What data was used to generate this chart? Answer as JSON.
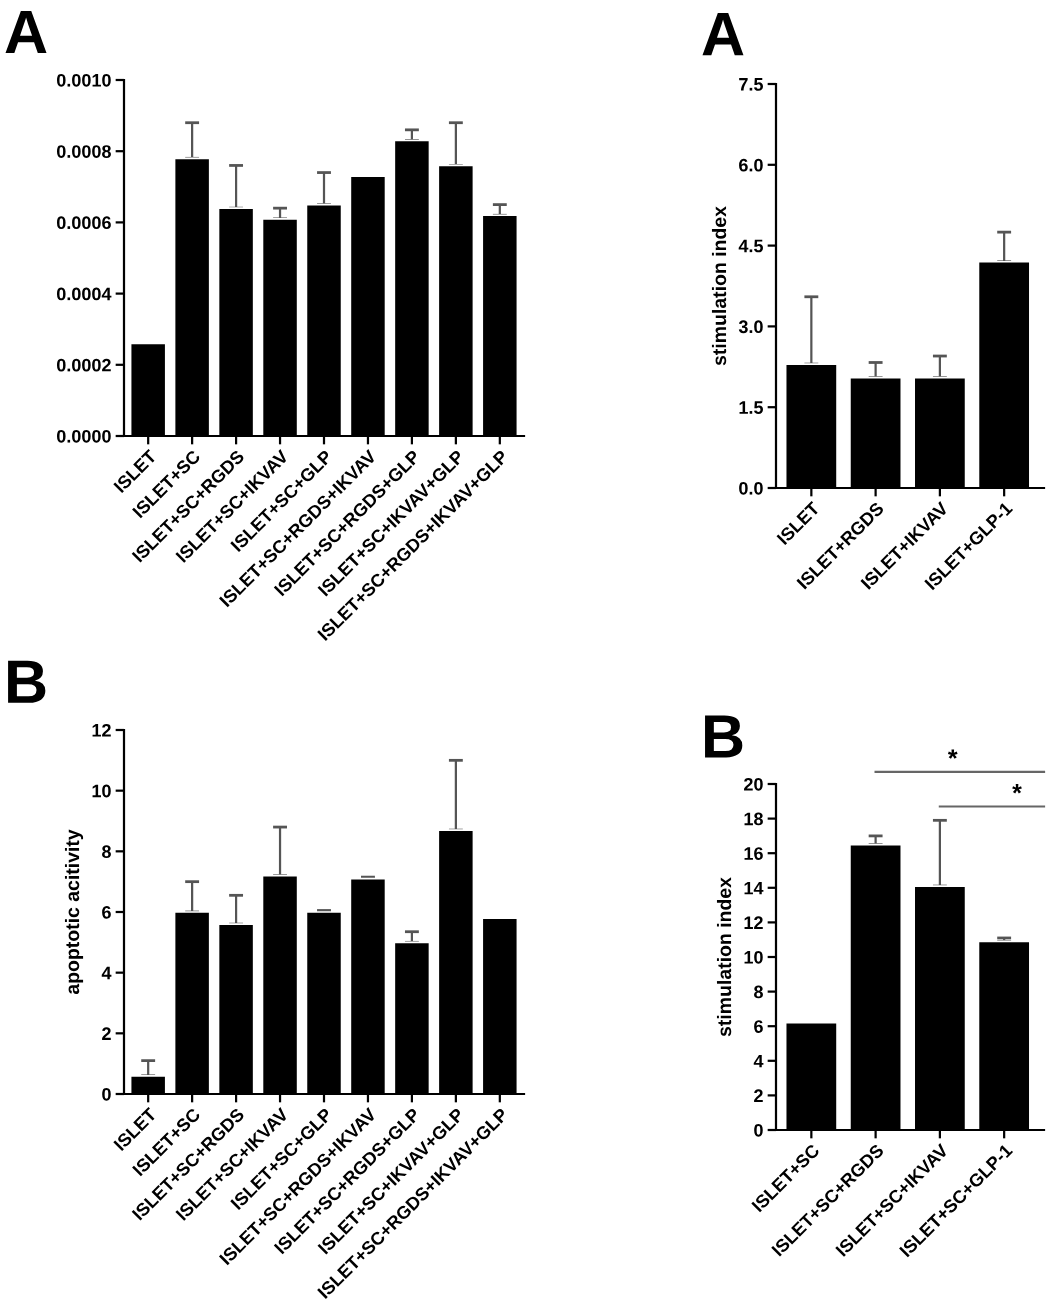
{
  "chart_data": [
    {
      "type": "bar",
      "title": "A",
      "categories": [
        "ISLET",
        "ISLET+SC",
        "ISLET+SC+RGDS",
        "ISLET+SC+IKVAV",
        "ISLET+SC+GLP",
        "ISLET+SC+RGDS+IKVAV",
        "ISLET+SC+RGDS+GLP",
        "ISLET+SC+IKVAV+GLP",
        "ISLET+SC+RGDS+IKVAV+GLP"
      ],
      "values": [
        0.00026,
        0.00078,
        0.00064,
        0.00061,
        0.00065,
        0.00073,
        0.00083,
        0.00076,
        0.00062
      ],
      "errors": [
        null,
        [
          0.00078,
          0.00088
        ],
        [
          0.00064,
          0.00076
        ],
        [
          0.00061,
          0.00064
        ],
        [
          0.00065,
          0.00074
        ],
        null,
        [
          0.00083,
          0.00086
        ],
        [
          0.00076,
          0.00088
        ],
        [
          0.00062,
          0.00065
        ]
      ],
      "color": "#000000",
      "ylim": [
        0,
        0.001
      ],
      "yticks": [
        {
          "value": 0,
          "label": "0.0000"
        },
        {
          "value": 0.0002,
          "label": "0.0002"
        },
        {
          "value": 0.0004,
          "label": "0.0004"
        },
        {
          "value": 0.0006,
          "label": "0.0006"
        },
        {
          "value": 0.0008,
          "label": "0.0008"
        },
        {
          "value": 0.001,
          "label": "0.0010"
        }
      ],
      "grid": false,
      "legend": false
    },
    {
      "type": "bar",
      "title": "A",
      "ylabel": "stimulation index",
      "categories": [
        "ISLET",
        "ISLET+RGDS",
        "ISLET+IKVAV",
        "ISLET+GLP-1"
      ],
      "values": [
        2.3,
        2.05,
        2.05,
        4.2
      ],
      "errors": [
        [
          2.3,
          3.55
        ],
        [
          2.05,
          2.33
        ],
        [
          2.05,
          2.45
        ],
        [
          4.2,
          4.75
        ]
      ],
      "color": "#000000",
      "ylim": [
        0,
        7.5
      ],
      "yticks": [
        {
          "value": 0,
          "label": "0.0"
        },
        {
          "value": 1.5,
          "label": "1.5"
        },
        {
          "value": 3,
          "label": "3.0"
        },
        {
          "value": 4.5,
          "label": "4.5"
        },
        {
          "value": 6,
          "label": "6.0"
        },
        {
          "value": 7.5,
          "label": "7.5"
        }
      ],
      "grid": false,
      "legend": false
    },
    {
      "type": "bar",
      "title": "B",
      "ylabel": "apoptotic acitivity",
      "categories": [
        "ISLET",
        "ISLET+SC",
        "ISLET+SC+RGDS",
        "ISLET+SC+IKVAV",
        "ISLET+SC+GLP",
        "ISLET+SC+RGDS+IKVAV",
        "ISLET+SC+RGDS+GLP",
        "ISLET+SC+IKVAV+GLP",
        "ISLET+SC+RGDS+IKVAV+GLP"
      ],
      "values": [
        0.6,
        6.0,
        5.6,
        7.2,
        6.0,
        7.1,
        5.0,
        8.7,
        5.8
      ],
      "errors": [
        [
          0.6,
          1.1
        ],
        [
          6.0,
          7.0
        ],
        [
          5.6,
          6.55
        ],
        [
          7.2,
          8.8
        ],
        [
          6.0,
          6.05
        ],
        [
          7.1,
          7.15
        ],
        [
          5.0,
          5.35
        ],
        [
          8.7,
          11.0
        ],
        null
      ],
      "color": "#000000",
      "ylim": [
        0,
        12
      ],
      "yticks": [
        0,
        2,
        4,
        6,
        8,
        10,
        12
      ],
      "grid": false,
      "legend": false
    },
    {
      "type": "bar",
      "title": "B",
      "ylabel": "stimulation index",
      "categories": [
        "ISLET+SC",
        "ISLET+SC+RGDS",
        "ISLET+SC+IKVAV",
        "ISLET+SC+GLP-1"
      ],
      "values": [
        6.2,
        16.5,
        14.1,
        10.9
      ],
      "errors": [
        null,
        [
          16.5,
          17.0
        ],
        [
          14.1,
          17.9
        ],
        [
          10.9,
          11.1
        ]
      ],
      "color": "#000000",
      "ylim": [
        0,
        20
      ],
      "yticks": [
        0,
        2,
        4,
        6,
        8,
        10,
        12,
        14,
        16,
        18,
        20
      ],
      "annotations": [
        "*",
        "*"
      ],
      "grid": false,
      "legend": false
    }
  ]
}
